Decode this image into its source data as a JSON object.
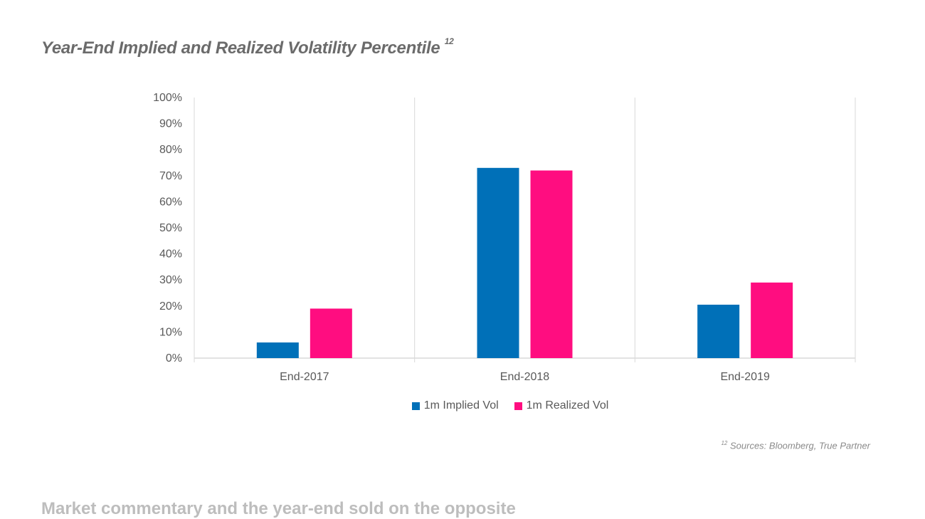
{
  "page": {
    "title": "Year-End Implied and Realized Volatility Percentile",
    "title_ref": "12",
    "footnote_ref": "12",
    "footnote": "Sources: Bloomberg, True Partner",
    "next_heading": "Market commentary and the year-end sold on the opposite"
  },
  "colors": {
    "implied": "#0070b8",
    "realized": "#ff0d80",
    "title": "#6b6b6b",
    "axis_text": "#595959",
    "grid": "#d9d9d9"
  },
  "chart_data": {
    "type": "bar",
    "categories": [
      "End-2017",
      "End-2018",
      "End-2019"
    ],
    "series": [
      {
        "name": "1m Implied Vol",
        "values": [
          6,
          73,
          20.5
        ]
      },
      {
        "name": "1m Realized Vol",
        "values": [
          19,
          72,
          29
        ]
      }
    ],
    "ylim": [
      0,
      100
    ],
    "yticks": [
      "0%",
      "10%",
      "20%",
      "30%",
      "40%",
      "50%",
      "60%",
      "70%",
      "80%",
      "90%",
      "100%"
    ],
    "xlabel": "",
    "ylabel": "",
    "grid": "vertical separators between categories",
    "legend": "bottom-center"
  }
}
